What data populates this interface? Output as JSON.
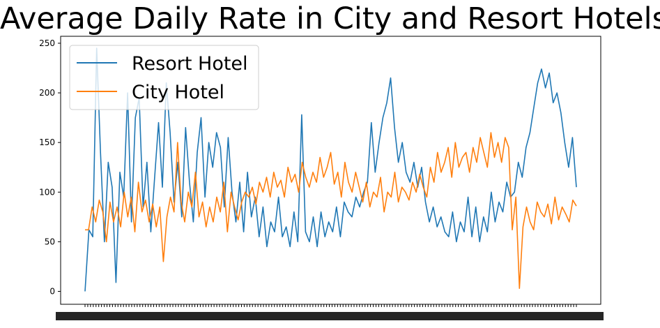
{
  "chart_data": {
    "type": "line",
    "title": "Average Daily Rate in City and Resort Hotels",
    "xlabel": "",
    "ylabel": "",
    "ylim": [
      -13,
      257
    ],
    "yticks": [
      0,
      50,
      100,
      150,
      200,
      250
    ],
    "grid": false,
    "legend_position": "top-left",
    "series": [
      {
        "name": "Resort Hotel",
        "color": "#1f77b4",
        "values": [
          0,
          62,
          55,
          245,
          140,
          50,
          130,
          105,
          9,
          120,
          95,
          200,
          70,
          175,
          195,
          85,
          130,
          60,
          115,
          170,
          105,
          210,
          160,
          90,
          130,
          75,
          165,
          110,
          70,
          140,
          175,
          95,
          150,
          125,
          160,
          145,
          85,
          155,
          100,
          70,
          110,
          60,
          120,
          75,
          95,
          55,
          85,
          45,
          70,
          60,
          95,
          55,
          65,
          45,
          80,
          50,
          178,
          60,
          50,
          75,
          45,
          80,
          55,
          70,
          60,
          85,
          55,
          90,
          80,
          75,
          95,
          85,
          100,
          110,
          170,
          120,
          150,
          175,
          190,
          215,
          165,
          130,
          150,
          120,
          110,
          130,
          105,
          125,
          90,
          70,
          85,
          65,
          75,
          60,
          55,
          80,
          50,
          70,
          60,
          95,
          55,
          85,
          50,
          75,
          60,
          100,
          70,
          90,
          80,
          110,
          95,
          100,
          130,
          115,
          145,
          160,
          185,
          210,
          224,
          205,
          220,
          190,
          200,
          180,
          150,
          125,
          155,
          105
        ]
      },
      {
        "name": "City Hotel",
        "color": "#ff7f0e",
        "values": [
          62,
          62,
          85,
          70,
          92,
          80,
          50,
          90,
          70,
          85,
          65,
          100,
          75,
          95,
          60,
          110,
          80,
          92,
          70,
          88,
          65,
          85,
          30,
          75,
          95,
          80,
          150,
          90,
          70,
          100,
          85,
          120,
          75,
          90,
          65,
          85,
          70,
          95,
          80,
          110,
          60,
          100,
          85,
          72,
          90,
          100,
          95,
          105,
          88,
          110,
          100,
          115,
          95,
          120,
          105,
          112,
          95,
          125,
          110,
          118,
          100,
          130,
          115,
          105,
          120,
          110,
          135,
          115,
          125,
          140,
          108,
          120,
          95,
          130,
          110,
          100,
          120,
          105,
          90,
          110,
          85,
          100,
          95,
          115,
          80,
          100,
          95,
          120,
          90,
          105,
          100,
          92,
          110,
          100,
          118,
          105,
          95,
          125,
          110,
          140,
          120,
          130,
          145,
          115,
          150,
          125,
          135,
          140,
          120,
          145,
          130,
          155,
          140,
          125,
          160,
          135,
          150,
          130,
          155,
          145,
          62,
          95,
          3,
          65,
          85,
          70,
          62,
          90,
          80,
          75,
          88,
          68,
          95,
          72,
          85,
          78,
          70,
          92,
          86
        ]
      }
    ]
  }
}
